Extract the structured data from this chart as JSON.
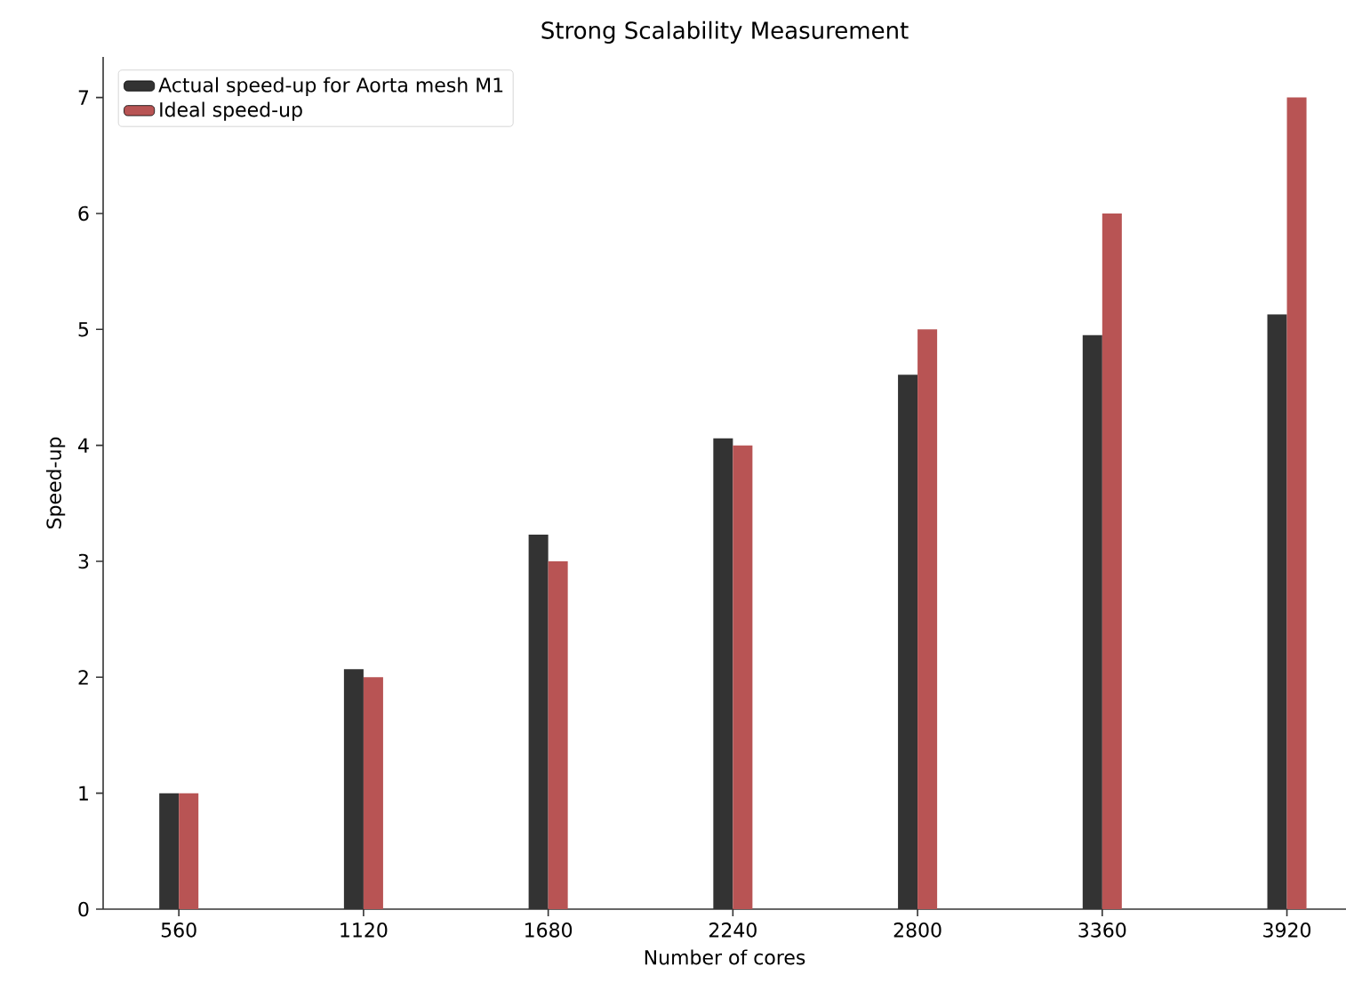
{
  "chart_data": {
    "type": "bar",
    "title": "Strong Scalability Measurement",
    "xlabel": "Number of cores",
    "ylabel": "Speed-up",
    "categories": [
      "560",
      "1120",
      "1680",
      "2240",
      "2800",
      "3360",
      "3920"
    ],
    "series": [
      {
        "name": "Actual speed-up for Aorta mesh M1",
        "color": "#333333",
        "values": [
          1.0,
          2.07,
          3.23,
          4.06,
          4.61,
          4.95,
          5.13
        ]
      },
      {
        "name": "Ideal speed-up",
        "color": "#b85454",
        "values": [
          1,
          2,
          3,
          4,
          5,
          6,
          7
        ]
      }
    ],
    "ylim": [
      0,
      7.35
    ],
    "yticks": [
      0,
      1,
      2,
      3,
      4,
      5,
      6,
      7
    ],
    "grid": false,
    "legend": "top left"
  }
}
